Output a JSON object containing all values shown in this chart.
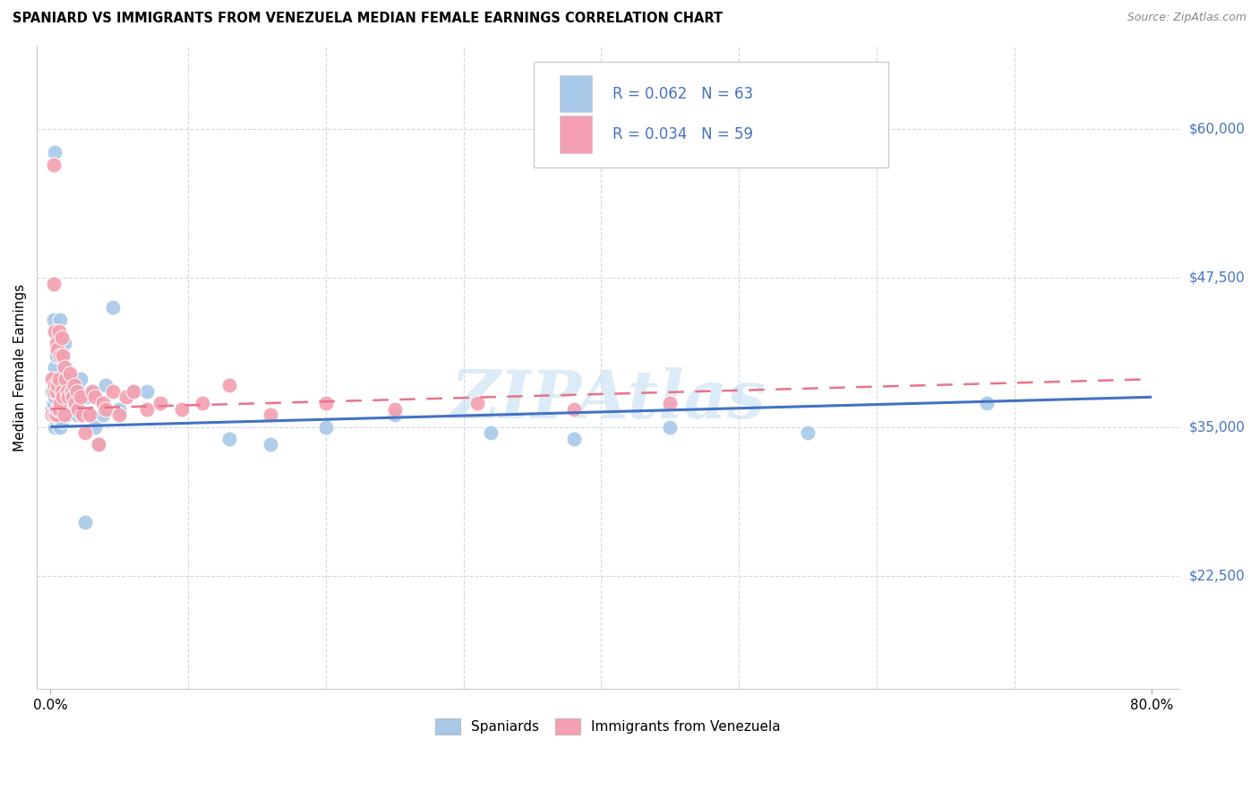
{
  "title": "SPANIARD VS IMMIGRANTS FROM VENEZUELA MEDIAN FEMALE EARNINGS CORRELATION CHART",
  "source": "Source: ZipAtlas.com",
  "ylabel": "Median Female Earnings",
  "yticks": [
    22500,
    35000,
    47500,
    60000
  ],
  "ytick_labels": [
    "$22,500",
    "$35,000",
    "$47,500",
    "$60,000"
  ],
  "legend_label1": "Spaniards",
  "legend_label2": "Immigrants from Venezuela",
  "r1": "0.062",
  "n1": "63",
  "r2": "0.034",
  "n2": "59",
  "color_blue": "#a8c8e8",
  "color_pink": "#f4a0b0",
  "color_blue_line": "#4472c4",
  "color_pink_line": "#e8748a",
  "watermark": "ZIPAtlas",
  "blue_scatter_x": [
    0.001,
    0.001,
    0.002,
    0.002,
    0.002,
    0.003,
    0.003,
    0.003,
    0.003,
    0.004,
    0.004,
    0.004,
    0.005,
    0.005,
    0.005,
    0.006,
    0.006,
    0.006,
    0.007,
    0.007,
    0.007,
    0.008,
    0.008,
    0.008,
    0.009,
    0.009,
    0.01,
    0.01,
    0.011,
    0.011,
    0.012,
    0.012,
    0.013,
    0.014,
    0.015,
    0.016,
    0.017,
    0.018,
    0.019,
    0.02,
    0.022,
    0.023,
    0.025,
    0.026,
    0.028,
    0.03,
    0.032,
    0.035,
    0.038,
    0.04,
    0.045,
    0.05,
    0.06,
    0.07,
    0.13,
    0.16,
    0.2,
    0.25,
    0.32,
    0.38,
    0.45,
    0.55,
    0.68
  ],
  "blue_scatter_y": [
    38000,
    36500,
    44000,
    39000,
    37000,
    58000,
    40000,
    37500,
    35000,
    41000,
    38000,
    35500,
    43000,
    38500,
    36000,
    42000,
    39000,
    36000,
    44000,
    38000,
    35000,
    41000,
    38500,
    35500,
    39000,
    37000,
    42000,
    36500,
    40000,
    37000,
    39500,
    36000,
    38000,
    37000,
    39000,
    36500,
    38000,
    37500,
    36000,
    38500,
    39000,
    36000,
    27000,
    37500,
    36000,
    38000,
    35000,
    33500,
    36000,
    38500,
    45000,
    36500,
    38000,
    38000,
    34000,
    33500,
    35000,
    36000,
    34500,
    34000,
    35000,
    34500,
    37000
  ],
  "pink_scatter_x": [
    0.001,
    0.001,
    0.002,
    0.002,
    0.002,
    0.003,
    0.003,
    0.003,
    0.004,
    0.004,
    0.004,
    0.005,
    0.005,
    0.005,
    0.006,
    0.006,
    0.006,
    0.007,
    0.007,
    0.008,
    0.008,
    0.009,
    0.009,
    0.01,
    0.01,
    0.011,
    0.012,
    0.013,
    0.014,
    0.015,
    0.016,
    0.017,
    0.018,
    0.019,
    0.02,
    0.022,
    0.023,
    0.025,
    0.028,
    0.03,
    0.032,
    0.035,
    0.038,
    0.04,
    0.045,
    0.05,
    0.055,
    0.06,
    0.07,
    0.08,
    0.095,
    0.11,
    0.13,
    0.16,
    0.2,
    0.25,
    0.31,
    0.38,
    0.45
  ],
  "pink_scatter_y": [
    39000,
    36000,
    57000,
    47000,
    38000,
    43000,
    38500,
    36000,
    42000,
    38000,
    36000,
    41500,
    38500,
    36500,
    43000,
    39000,
    36500,
    41000,
    37000,
    42500,
    38000,
    41000,
    37500,
    40000,
    36000,
    39000,
    38000,
    37500,
    39500,
    38000,
    37500,
    38500,
    37000,
    38000,
    36500,
    37500,
    36000,
    34500,
    36000,
    38000,
    37500,
    33500,
    37000,
    36500,
    38000,
    36000,
    37500,
    38000,
    36500,
    37000,
    36500,
    37000,
    38500,
    36000,
    37000,
    36500,
    37000,
    36500,
    37000
  ]
}
